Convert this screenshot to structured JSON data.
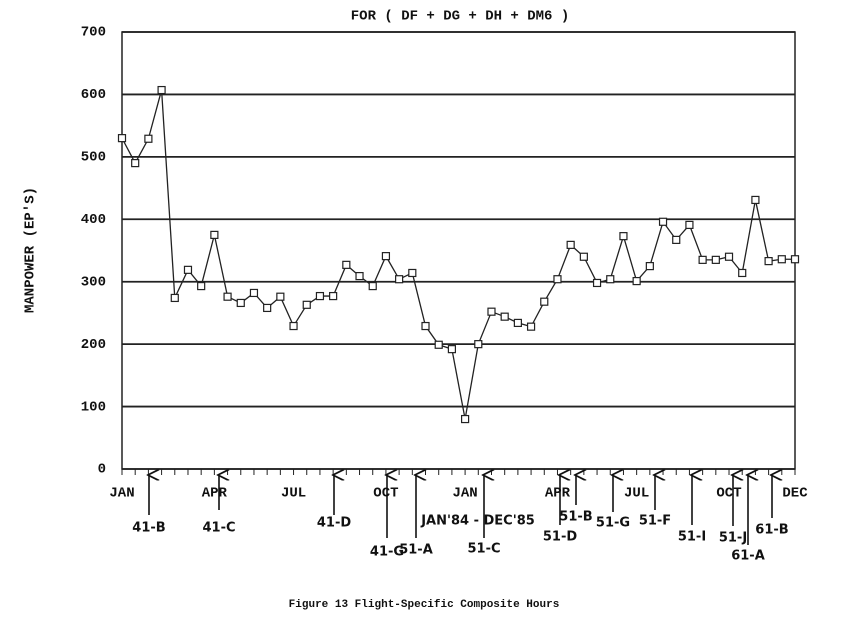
{
  "chart_data": {
    "type": "line",
    "title": "FOR ( DF + DG + DH + DM6 )",
    "y_label": "MANPOWER (EP'S)",
    "caption": "Figure 13 Flight-Specific Composite Hours",
    "period_label": "JAN'84 - DEC'85",
    "categories": [
      "JAN",
      null,
      null,
      null,
      null,
      null,
      null,
      "APR",
      null,
      null,
      null,
      null,
      null,
      "JUL",
      null,
      null,
      null,
      null,
      null,
      null,
      "OCT",
      null,
      null,
      null,
      null,
      null,
      "JAN",
      null,
      null,
      null,
      null,
      null,
      null,
      "APR",
      null,
      null,
      null,
      null,
      null,
      "JUL",
      null,
      null,
      null,
      null,
      null,
      null,
      "OCT",
      null,
      null,
      null,
      null,
      "DEC"
    ],
    "series": [
      {
        "color": "#222222",
        "values": [
          530,
          490,
          529,
          607,
          274,
          319,
          293,
          375,
          276,
          266,
          282,
          258,
          276,
          229,
          263,
          277,
          277,
          327,
          309,
          293,
          341,
          304,
          314,
          229,
          199,
          192,
          80,
          200,
          252,
          244,
          234,
          228,
          268,
          304,
          359,
          340,
          298,
          304,
          373,
          301,
          325,
          396,
          367,
          391,
          335,
          335,
          340,
          314,
          431,
          333,
          336,
          336
        ]
      }
    ],
    "annotations": [
      "41-B",
      "41-C",
      "41-D",
      "41-G",
      "51-A",
      "51-C",
      "51-D",
      "51-B",
      "51-G",
      "51-F",
      "51-I",
      "51-J",
      "61-A",
      "61-B"
    ],
    "ylim": [
      0,
      700
    ],
    "yticks": [
      0,
      100,
      200,
      300,
      400,
      500,
      600,
      700
    ],
    "grid": true
  }
}
